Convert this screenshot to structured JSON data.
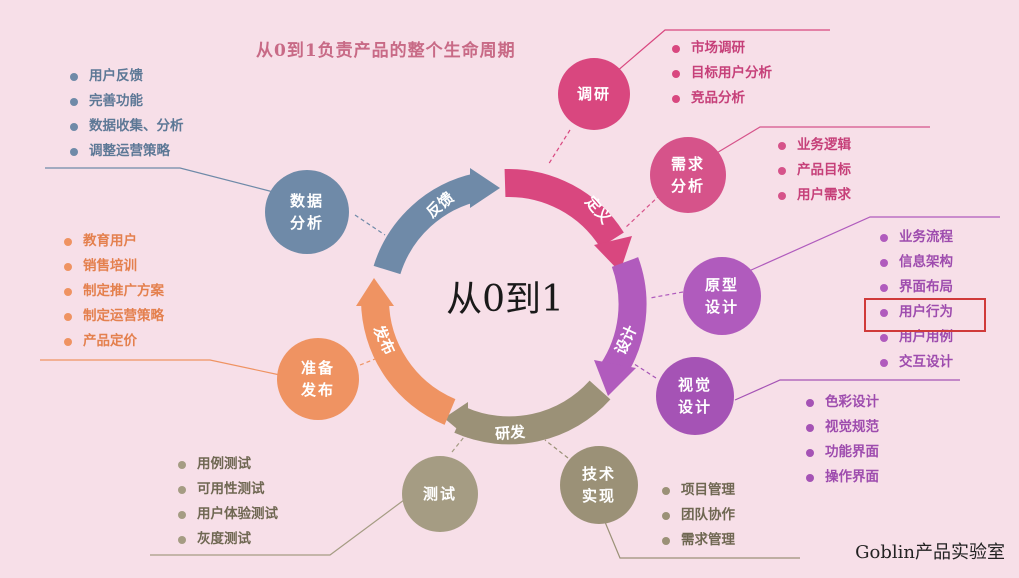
{
  "title": "从0到1负责产品的整个生命周期",
  "center": "从0到1",
  "brand": "Goblin产品实验室",
  "arcs": {
    "feedback": "反馈",
    "define": "定义",
    "design": "设计",
    "develop": "研发",
    "release": "发布"
  },
  "nodes": {
    "research": {
      "label": "调研",
      "color": "#d9477f",
      "items": [
        "市场调研",
        "目标用户分析",
        "竞品分析"
      ]
    },
    "requirements": {
      "label": "需求\n分析",
      "color": "#d6538a",
      "items": [
        "业务逻辑",
        "产品目标",
        "用户需求"
      ]
    },
    "prototype": {
      "label": "原型\n设计",
      "color": "#b05bbd",
      "items": [
        "业务流程",
        "信息架构",
        "界面布局",
        "用户行为",
        "用户用例",
        "交互设计"
      ]
    },
    "visual": {
      "label": "视觉\n设计",
      "color": "#a553b5",
      "items": [
        "色彩设计",
        "视觉规范",
        "功能界面",
        "操作界面"
      ]
    },
    "tech": {
      "label": "技术\n实现",
      "color": "#9b9177",
      "items": [
        "项目管理",
        "团队协作",
        "需求管理"
      ]
    },
    "test": {
      "label": "测试",
      "color": "#a59c83",
      "items": [
        "用例测试",
        "可用性测试",
        "用户体验测试",
        "灰度测试"
      ]
    },
    "launch": {
      "label": "准备\n发布",
      "color": "#ef9362",
      "items": [
        "教育用户",
        "销售培训",
        "制定推广方案",
        "制定运营策略",
        "产品定价"
      ]
    },
    "data": {
      "label": "数据\n分析",
      "color": "#6f8aa8",
      "items": [
        "用户反馈",
        "完善功能",
        "数据收集、分析",
        "调整运营策略"
      ]
    }
  },
  "highlighted_item": "用户行为",
  "colors": {
    "background": "#f7dfe8",
    "highlight_box": "#d03a3a",
    "pink": "#d9477f",
    "purple": "#a553b5",
    "olive": "#9b9177",
    "orange": "#ef9362",
    "blue": "#6f8aa8"
  }
}
